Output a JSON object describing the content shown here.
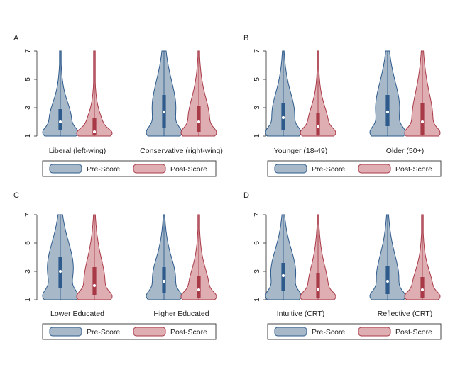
{
  "legend_labels": [
    "Pre-Score",
    "Post-Score"
  ],
  "colors": {
    "pre_fill": "#a7b9c9",
    "pre_stroke": "#2f5b8c",
    "post_fill": "#dfaeb2",
    "post_stroke": "#a83a48"
  },
  "chart_data": [
    {
      "type": "violin",
      "panel": "A",
      "y_ticks": [
        1,
        3,
        5,
        7
      ],
      "ylim": [
        1,
        7
      ],
      "legend": [
        "Pre-Score",
        "Post-Score"
      ],
      "legend_position": "bottom",
      "groups": [
        {
          "label": "Liberal (left-wing)",
          "pre": {
            "median": 2.0,
            "q1": 1.4,
            "q3": 2.9,
            "min": 1.0,
            "max": 7.0
          },
          "post": {
            "median": 1.3,
            "q1": 1.1,
            "q3": 2.3,
            "min": 1.0,
            "max": 7.0
          }
        },
        {
          "label": "Conservative (right-wing)",
          "pre": {
            "median": 2.7,
            "q1": 1.6,
            "q3": 3.9,
            "min": 1.0,
            "max": 7.0
          },
          "post": {
            "median": 2.0,
            "q1": 1.3,
            "q3": 3.1,
            "min": 1.0,
            "max": 7.0
          }
        }
      ]
    },
    {
      "type": "violin",
      "panel": "B",
      "y_ticks": [
        1,
        3,
        5,
        7
      ],
      "ylim": [
        1,
        7
      ],
      "legend": [
        "Pre-Score",
        "Post-Score"
      ],
      "legend_position": "bottom",
      "groups": [
        {
          "label": "Younger (18-49)",
          "pre": {
            "median": 2.3,
            "q1": 1.4,
            "q3": 3.3,
            "min": 1.0,
            "max": 7.0
          },
          "post": {
            "median": 1.7,
            "q1": 1.1,
            "q3": 2.6,
            "min": 1.0,
            "max": 7.0
          }
        },
        {
          "label": "Older (50+)",
          "pre": {
            "median": 2.7,
            "q1": 1.7,
            "q3": 3.9,
            "min": 1.0,
            "max": 7.0
          },
          "post": {
            "median": 2.0,
            "q1": 1.1,
            "q3": 3.3,
            "min": 1.0,
            "max": 7.0
          }
        }
      ]
    },
    {
      "type": "violin",
      "panel": "C",
      "y_ticks": [
        1,
        3,
        5,
        7
      ],
      "ylim": [
        1,
        7
      ],
      "legend": [
        "Pre-Score",
        "Post-Score"
      ],
      "legend_position": "bottom",
      "groups": [
        {
          "label": "Lower Educated",
          "pre": {
            "median": 3.0,
            "q1": 1.8,
            "q3": 4.0,
            "min": 1.0,
            "max": 7.0
          },
          "post": {
            "median": 2.0,
            "q1": 1.3,
            "q3": 3.3,
            "min": 1.0,
            "max": 7.0
          }
        },
        {
          "label": "Higher Educated",
          "pre": {
            "median": 2.3,
            "q1": 1.5,
            "q3": 3.3,
            "min": 1.0,
            "max": 7.0
          },
          "post": {
            "median": 1.7,
            "q1": 1.1,
            "q3": 2.7,
            "min": 1.0,
            "max": 7.0
          }
        }
      ]
    },
    {
      "type": "violin",
      "panel": "D",
      "y_ticks": [
        1,
        3,
        5,
        7
      ],
      "ylim": [
        1,
        7
      ],
      "legend": [
        "Pre-Score",
        "Post-Score"
      ],
      "legend_position": "bottom",
      "groups": [
        {
          "label": "Intuitive (CRT)",
          "pre": {
            "median": 2.7,
            "q1": 1.6,
            "q3": 3.6,
            "min": 1.0,
            "max": 7.0
          },
          "post": {
            "median": 1.7,
            "q1": 1.1,
            "q3": 2.9,
            "min": 1.0,
            "max": 7.0
          }
        },
        {
          "label": "Reflective (CRT)",
          "pre": {
            "median": 2.3,
            "q1": 1.4,
            "q3": 3.4,
            "min": 1.0,
            "max": 7.0
          },
          "post": {
            "median": 1.7,
            "q1": 1.1,
            "q3": 2.6,
            "min": 1.0,
            "max": 7.0
          }
        }
      ]
    }
  ]
}
